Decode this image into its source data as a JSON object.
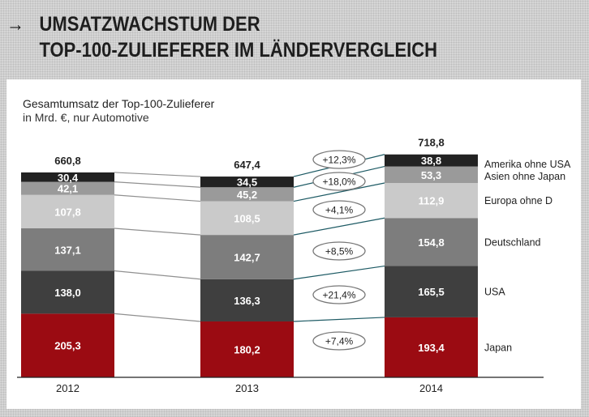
{
  "header": {
    "arrow_icon": "right-arrow-icon",
    "line1": "UMSATZWACHSTUM DER",
    "line2": "TOP-100-ZULIEFERER IM LÄNDERVERGLEICH"
  },
  "chart_data": {
    "type": "bar",
    "stacked": true,
    "title": "Gesamtumsatz der Top-100-Zulieferer",
    "subtitle": "in Mrd. €, nur Automotive",
    "categories": [
      "2012",
      "2013",
      "2014"
    ],
    "totals": [
      "660,8",
      "647,4",
      "718,8"
    ],
    "series": [
      {
        "name": "Japan",
        "color": "#9b0b12",
        "text": "#ffffff",
        "values": [
          205.3,
          180.2,
          193.4
        ],
        "labels": [
          "205,3",
          "180,2",
          "193,4"
        ],
        "growth": "+7,4%"
      },
      {
        "name": "USA",
        "color": "#3f3f3f",
        "text": "#ffffff",
        "values": [
          138.0,
          136.3,
          165.5
        ],
        "labels": [
          "138,0",
          "136,3",
          "165,5"
        ],
        "growth": "+21,4%"
      },
      {
        "name": "Deutschland",
        "color": "#7d7d7d",
        "text": "#ffffff",
        "values": [
          137.1,
          142.7,
          154.8
        ],
        "labels": [
          "137,1",
          "142,7",
          "154,8"
        ],
        "growth": "+8,5%"
      },
      {
        "name": "Europa ohne D",
        "color": "#cacaca",
        "text": "#ffffff",
        "values": [
          107.8,
          108.5,
          112.9
        ],
        "labels": [
          "107,8",
          "108,5",
          "112,9"
        ],
        "growth": "+4,1%"
      },
      {
        "name": "Asien ohne Japan",
        "color": "#9a9a9a",
        "text": "#ffffff",
        "values": [
          42.1,
          45.2,
          53.3
        ],
        "labels": [
          "42,1",
          "45,2",
          "53,3"
        ],
        "growth": "+18,0%"
      },
      {
        "name": "Amerika ohne USA",
        "color": "#222222",
        "text": "#ffffff",
        "values": [
          30.4,
          34.5,
          38.8
        ],
        "labels": [
          "30,4",
          "34,5",
          "38,8"
        ],
        "growth": "+12,3%"
      }
    ],
    "connector_colors": [
      "#909090",
      "#1d5a64"
    ],
    "legend": "right"
  }
}
